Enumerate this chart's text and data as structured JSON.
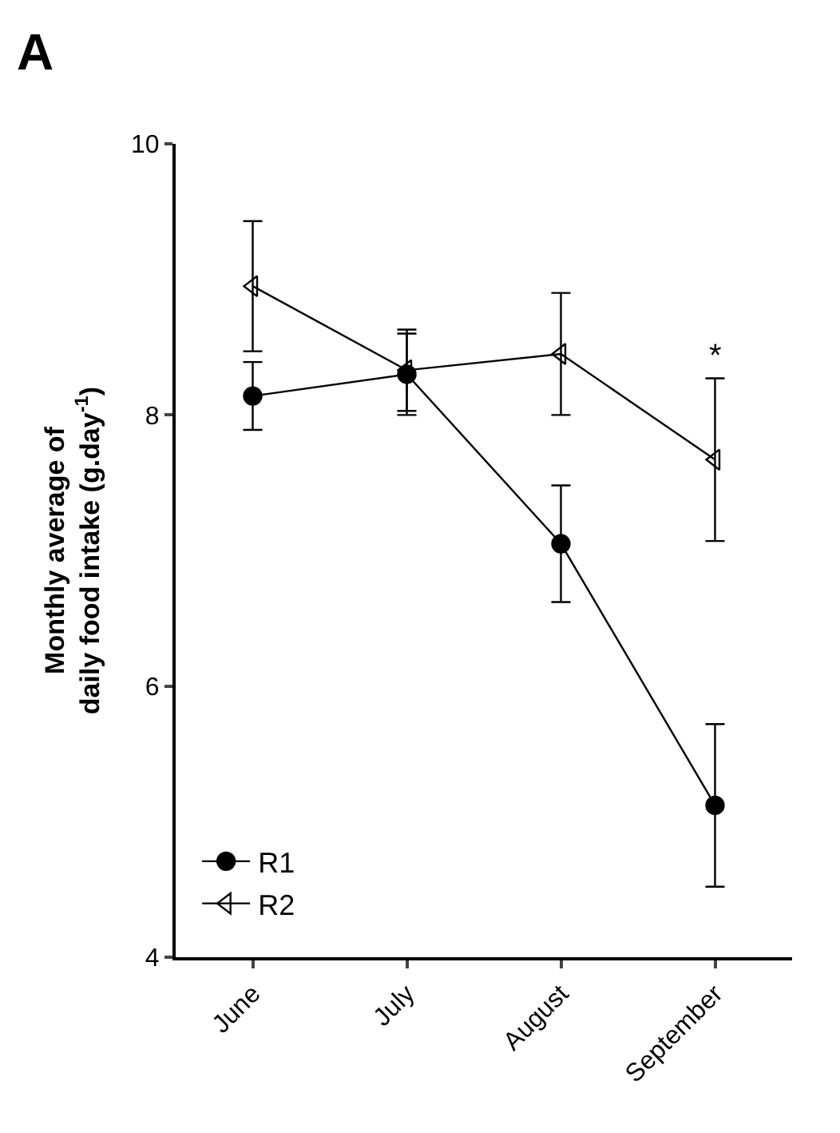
{
  "chart_data": {
    "type": "line",
    "title": "A",
    "ylabel": "Monthly average of daily food intake (g.day$^{-1}$)",
    "categories": [
      "June",
      "July",
      "August",
      "September"
    ],
    "series": [
      {
        "name": "R1",
        "color": "#000000",
        "marker": "circle",
        "values": [
          8.14,
          8.3,
          7.05,
          5.12
        ],
        "errors": [
          0.25,
          0.3,
          0.43,
          0.6
        ]
      },
      {
        "name": "R2",
        "color": "#000000",
        "marker": "triangle",
        "values": [
          8.95,
          8.33,
          8.45,
          7.67
        ],
        "errors": [
          0.48,
          0.3,
          0.45,
          0.6
        ]
      }
    ],
    "annotations": [
      "*"
    ],
    "ylim": [
      4,
      10
    ],
    "yticks": [
      4,
      6,
      8,
      10
    ],
    "legend": "bottom left"
  }
}
